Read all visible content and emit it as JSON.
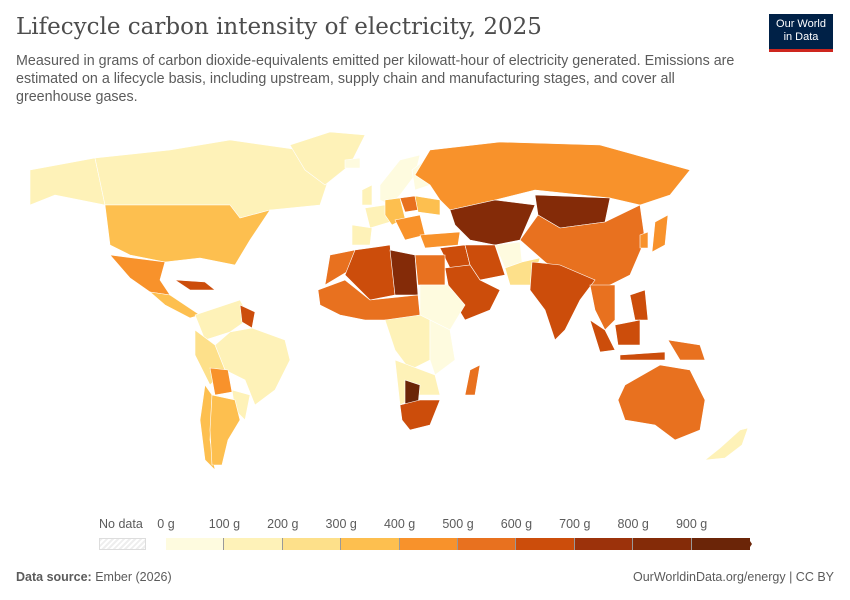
{
  "title": "Lifecycle carbon intensity of electricity, 2025",
  "subtitle": "Measured in grams of carbon dioxide-equivalents emitted per kilowatt-hour of electricity generated. Emissions are estimated on a lifecycle basis, including upstream, supply chain and manufacturing stages, and cover all greenhouse gases.",
  "logo": {
    "line1": "Our World",
    "line2": "in Data"
  },
  "legend": {
    "no_data": "No data",
    "labels": [
      "0 g",
      "100 g",
      "200 g",
      "300 g",
      "400 g",
      "500 g",
      "600 g",
      "700 g",
      "800 g",
      "900 g"
    ],
    "colors": [
      "#fefbdf",
      "#fef2b8",
      "#fde08a",
      "#fdbf4f",
      "#f8922b",
      "#e8711f",
      "#cc4d0b",
      "#9c320b",
      "#842b08",
      "#6b2508"
    ]
  },
  "map_bins": {
    "alaska": 1,
    "canada": 1,
    "greenland": 1,
    "usa": 3,
    "mexico": 4,
    "central_america": 3,
    "caribbean": 6,
    "colombia_venezuela": 1,
    "guyana": 6,
    "brazil": 1,
    "peru_ecuador": 2,
    "bolivia": 4,
    "chile": 3,
    "argentina": 3,
    "paraguay_uruguay": 1,
    "iceland_norway_sweden": 0,
    "finland": 0,
    "uk_france": 1,
    "iberia": 1,
    "central_europe": 3,
    "poland": 5,
    "balkans": 4,
    "ukraine": 3,
    "russia": 4,
    "kazakhstan_central_asia": 8,
    "mongolia": 8,
    "china": 5,
    "korea_japan": 4,
    "india": 6,
    "pakistan": 2,
    "afghanistan": 0,
    "iran": 6,
    "saudi_arabia": 6,
    "iraq_syria": 6,
    "turkey": 4,
    "egypt": 5,
    "libya": 8,
    "algeria": 6,
    "morocco": 5,
    "sahel_west_africa": 5,
    "central_africa": 1,
    "east_africa": 0,
    "ethiopia": 0,
    "southern_africa": 1,
    "south_africa": 6,
    "botswana": 9,
    "madagascar": 5,
    "se_asia": 5,
    "indonesia": 6,
    "philippines": 6,
    "australia": 5,
    "new_zealand": 1,
    "papua": 5
  },
  "footer": {
    "source_label": "Data source:",
    "source": "Ember (2026)",
    "link": "OurWorldinData.org/energy | CC BY"
  }
}
